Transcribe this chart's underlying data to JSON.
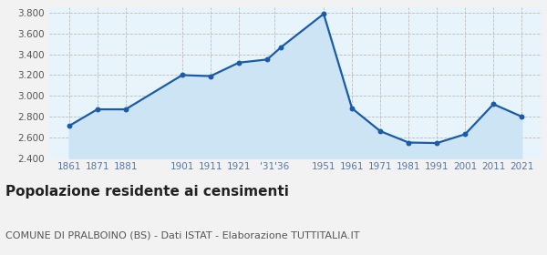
{
  "years": [
    1861,
    1871,
    1881,
    1901,
    1911,
    1921,
    1931,
    1936,
    1951,
    1961,
    1971,
    1981,
    1991,
    2001,
    2011,
    2021
  ],
  "population": [
    2710,
    2870,
    2870,
    3200,
    3190,
    3320,
    3350,
    3470,
    3790,
    2880,
    2660,
    2550,
    2545,
    2630,
    2920,
    2800
  ],
  "line_color": "#1a5ca8",
  "fill_color": "#cde4f5",
  "marker_color": "#1a5ca8",
  "bg_color": "#f2f2f2",
  "plot_bg_color": "#e8f4fb",
  "grid_color": "#bbbbbb",
  "ylim": [
    2400,
    3850
  ],
  "yticks": [
    2400,
    2600,
    2800,
    3000,
    3200,
    3400,
    3600,
    3800
  ],
  "x_tick_positions": [
    1861,
    1871,
    1881,
    1901,
    1911,
    1921,
    1933.5,
    1951,
    1961,
    1971,
    1981,
    1991,
    2001,
    2011,
    2021
  ],
  "x_tick_labels": [
    "1861",
    "1871",
    "1881",
    "1901",
    "1911",
    "1921",
    "'31'36",
    "1951",
    "1961",
    "1971",
    "1981",
    "1991",
    "2001",
    "2011",
    "2021"
  ],
  "xlim": [
    1854,
    2028
  ],
  "title": "Popolazione residente ai censimenti",
  "subtitle": "COMUNE DI PRALBOINO (BS) - Dati ISTAT - Elaborazione TUTTITALIA.IT",
  "title_fontsize": 11,
  "subtitle_fontsize": 8,
  "tick_color": "#5577aa",
  "ytick_color": "#555555"
}
